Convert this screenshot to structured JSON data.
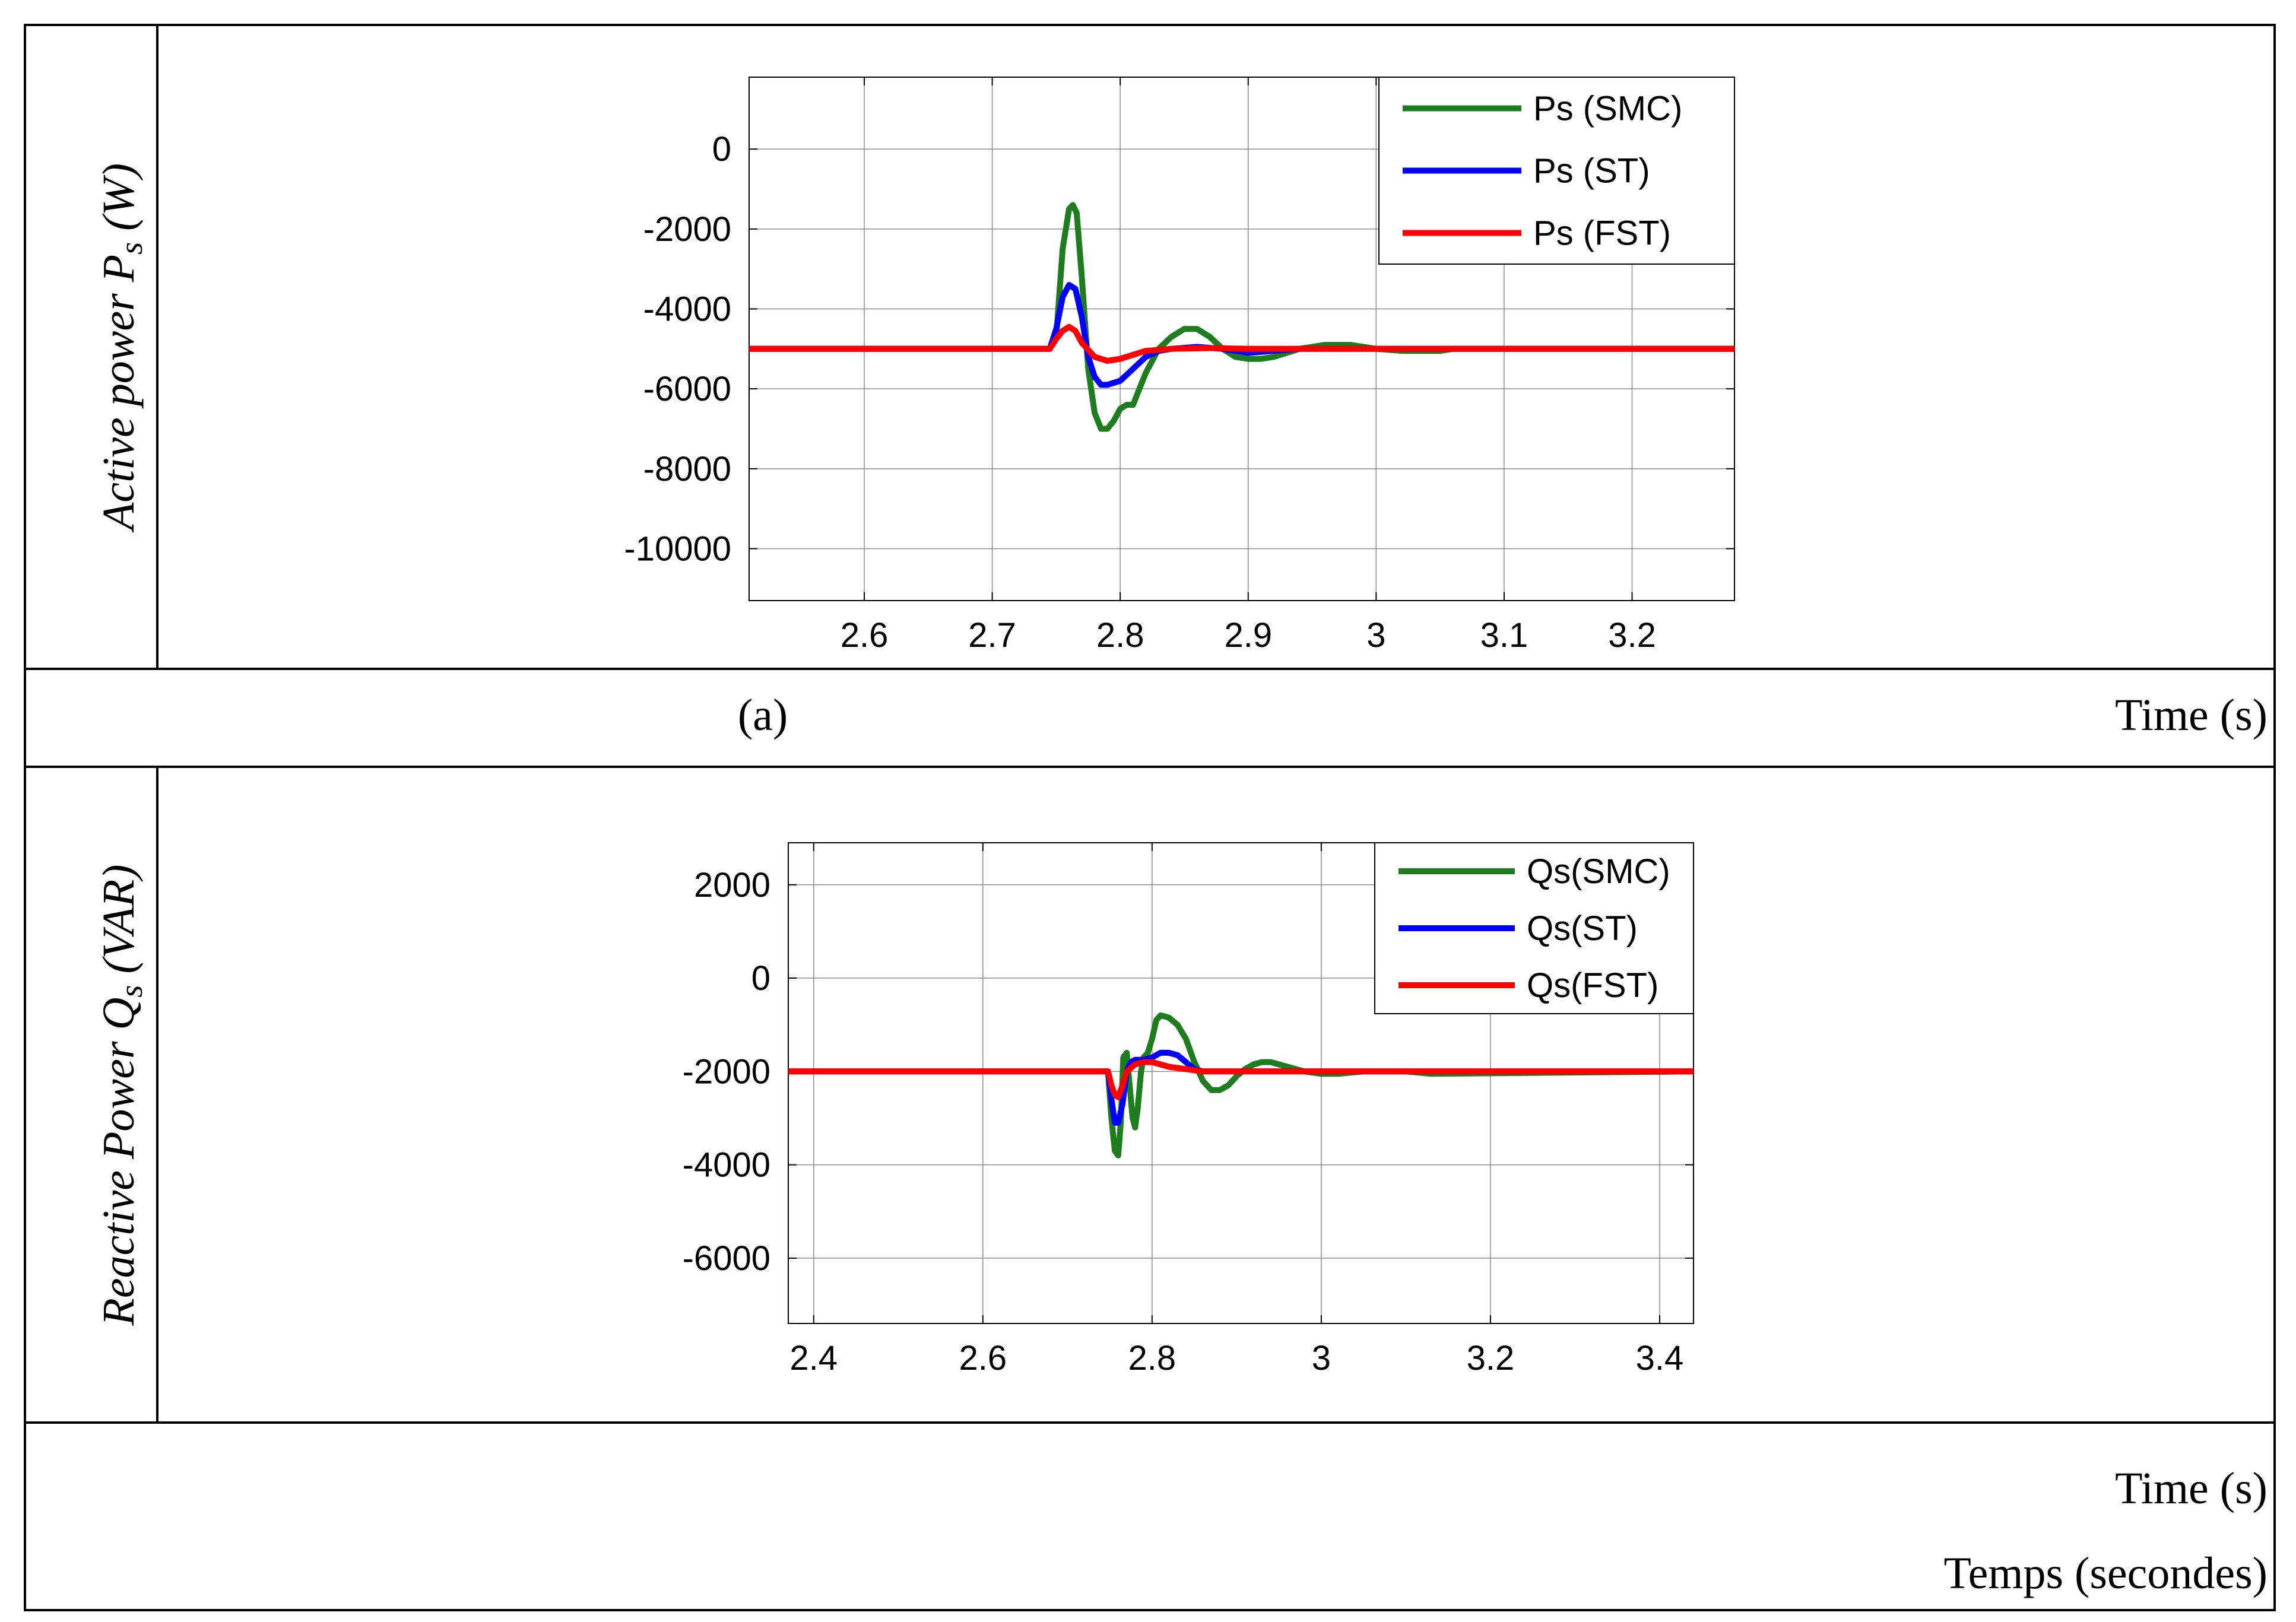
{
  "captions": {
    "panel_a_label": "(a)",
    "panel_a_time": "Time (s)",
    "panel_b_time": "Time (s)",
    "panel_b_time_fr": "Temps (secondes)"
  },
  "ylabels": {
    "a_main": "Active power P",
    "a_sub": "s",
    "a_unit": " (W)",
    "b_main": "Reactive Power Q",
    "b_sub": "s",
    "b_unit": " (VAR)"
  },
  "colors": {
    "smc": "#1e7d1e",
    "st": "#0000ff",
    "fst": "#ff0000"
  },
  "chart_data": [
    {
      "type": "line",
      "id": "a",
      "xlim": [
        2.51,
        3.28
      ],
      "ylim": [
        -11300,
        1800
      ],
      "xticks": [
        2.6,
        2.7,
        2.8,
        2.9,
        3.0,
        3.1,
        3.2
      ],
      "xtick_labels": [
        "2.6",
        "2.7",
        "2.8",
        "2.9",
        "3",
        "3.1",
        "3.2"
      ],
      "yticks": [
        0,
        -2000,
        -4000,
        -6000,
        -8000,
        -10000
      ],
      "ytick_labels": [
        "0",
        "-2000",
        "-4000",
        "-6000",
        "-8000",
        "-10000"
      ],
      "grid": true,
      "legend_position": "top-right",
      "series": [
        {
          "name": "Ps (SMC)",
          "color_key": "smc",
          "x": [
            2.51,
            2.745,
            2.75,
            2.755,
            2.76,
            2.763,
            2.766,
            2.77,
            2.775,
            2.78,
            2.785,
            2.79,
            2.795,
            2.8,
            2.805,
            2.81,
            2.815,
            2.82,
            2.83,
            2.84,
            2.85,
            2.86,
            2.87,
            2.88,
            2.89,
            2.9,
            2.91,
            2.92,
            2.93,
            2.94,
            2.95,
            2.96,
            2.97,
            2.98,
            2.99,
            3.0,
            3.02,
            3.05,
            3.06,
            3.28
          ],
          "y": [
            -5000,
            -5000,
            -4700,
            -2500,
            -1500,
            -1400,
            -1600,
            -3200,
            -5500,
            -6600,
            -7000,
            -7000,
            -6800,
            -6500,
            -6400,
            -6400,
            -6000,
            -5600,
            -5000,
            -4700,
            -4500,
            -4500,
            -4700,
            -5000,
            -5200,
            -5250,
            -5250,
            -5200,
            -5100,
            -5000,
            -4950,
            -4900,
            -4900,
            -4900,
            -4950,
            -5000,
            -5050,
            -5050,
            -5000,
            -5000
          ]
        },
        {
          "name": "Ps (ST)",
          "color_key": "st",
          "x": [
            2.51,
            2.745,
            2.75,
            2.755,
            2.76,
            2.765,
            2.77,
            2.775,
            2.78,
            2.785,
            2.79,
            2.8,
            2.81,
            2.82,
            2.83,
            2.84,
            2.86,
            2.88,
            2.9,
            2.92,
            2.94,
            2.96,
            3.28
          ],
          "y": [
            -5000,
            -5000,
            -4500,
            -3700,
            -3400,
            -3500,
            -4200,
            -5200,
            -5700,
            -5900,
            -5900,
            -5800,
            -5500,
            -5200,
            -5050,
            -5000,
            -4950,
            -5000,
            -5100,
            -5050,
            -5000,
            -5000,
            -5000
          ]
        },
        {
          "name": "Ps (FST)",
          "color_key": "fst",
          "x": [
            2.51,
            2.745,
            2.75,
            2.755,
            2.76,
            2.765,
            2.77,
            2.78,
            2.79,
            2.8,
            2.81,
            2.82,
            2.84,
            2.87,
            2.9,
            2.95,
            3.28
          ],
          "y": [
            -5000,
            -5000,
            -4750,
            -4550,
            -4450,
            -4550,
            -4850,
            -5200,
            -5300,
            -5250,
            -5150,
            -5050,
            -5000,
            -4980,
            -5000,
            -5000,
            -5000
          ]
        }
      ]
    },
    {
      "type": "line",
      "id": "b",
      "xlim": [
        2.37,
        3.44
      ],
      "ylim": [
        -7400,
        2900
      ],
      "xticks": [
        2.4,
        2.6,
        2.8,
        3.0,
        3.2,
        3.4
      ],
      "xtick_labels": [
        "2.4",
        "2.6",
        "2.8",
        "3",
        "3.2",
        "3.4"
      ],
      "yticks": [
        2000,
        0,
        -2000,
        -4000,
        -6000
      ],
      "ytick_labels": [
        "2000",
        "0",
        "-2000",
        "-4000",
        "-6000"
      ],
      "grid": true,
      "legend_position": "top-right",
      "series": [
        {
          "name": "Qs(SMC)",
          "color_key": "smc",
          "x": [
            2.37,
            2.748,
            2.752,
            2.756,
            2.76,
            2.763,
            2.766,
            2.77,
            2.773,
            2.777,
            2.78,
            2.783,
            2.787,
            2.79,
            2.795,
            2.8,
            2.805,
            2.81,
            2.815,
            2.82,
            2.83,
            2.84,
            2.85,
            2.86,
            2.87,
            2.88,
            2.89,
            2.9,
            2.91,
            2.92,
            2.93,
            2.94,
            2.95,
            2.96,
            2.98,
            3.0,
            3.02,
            3.05,
            3.1,
            3.13,
            3.44
          ],
          "y": [
            -2000,
            -2000,
            -3000,
            -3700,
            -3800,
            -3100,
            -1700,
            -1600,
            -2200,
            -3000,
            -3200,
            -2800,
            -2000,
            -1700,
            -1600,
            -1300,
            -900,
            -800,
            -820,
            -850,
            -1000,
            -1300,
            -1800,
            -2200,
            -2400,
            -2400,
            -2300,
            -2100,
            -1950,
            -1850,
            -1800,
            -1800,
            -1850,
            -1900,
            -2000,
            -2050,
            -2050,
            -2000,
            -2000,
            -2050,
            -2000
          ]
        },
        {
          "name": "Qs(ST)",
          "color_key": "st",
          "x": [
            2.37,
            2.748,
            2.752,
            2.756,
            2.76,
            2.765,
            2.77,
            2.775,
            2.78,
            2.79,
            2.8,
            2.81,
            2.82,
            2.83,
            2.84,
            2.85,
            2.86,
            2.88,
            2.9,
            2.95,
            3.44
          ],
          "y": [
            -2000,
            -2000,
            -2600,
            -3100,
            -3100,
            -2700,
            -2000,
            -1800,
            -1750,
            -1750,
            -1700,
            -1600,
            -1600,
            -1650,
            -1800,
            -1950,
            -2000,
            -2000,
            -2000,
            -2000,
            -2000
          ]
        },
        {
          "name": "Qs(FST)",
          "color_key": "fst",
          "x": [
            2.37,
            2.748,
            2.752,
            2.756,
            2.76,
            2.765,
            2.77,
            2.78,
            2.79,
            2.8,
            2.81,
            2.82,
            2.84,
            2.86,
            2.9,
            2.95,
            3.44
          ],
          "y": [
            -2000,
            -2000,
            -2300,
            -2500,
            -2550,
            -2300,
            -2000,
            -1850,
            -1800,
            -1800,
            -1850,
            -1900,
            -1950,
            -2000,
            -2000,
            -2000,
            -2000
          ]
        }
      ]
    }
  ]
}
